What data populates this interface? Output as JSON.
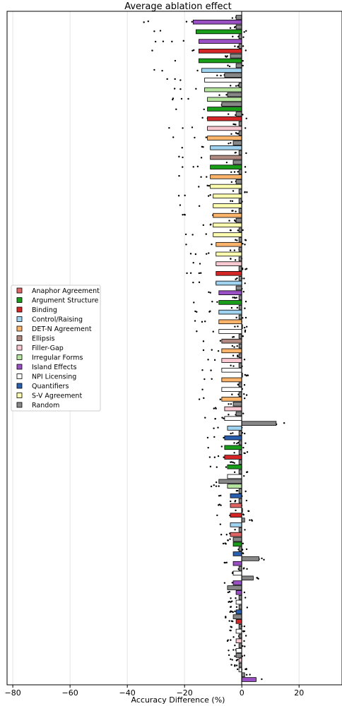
{
  "chart_data": {
    "type": "bar",
    "orientation": "horizontal",
    "title": "Average ablation effect",
    "xlabel": "Accuracy Difference (%)",
    "ylabel": "",
    "xlim": [
      -82,
      35
    ],
    "xticks": [
      -80,
      -60,
      -40,
      -20,
      0,
      20
    ],
    "grid": "vertical",
    "legend_position": "center-left",
    "legend": [
      {
        "name": "Anaphor Agreement",
        "color": "#e06666"
      },
      {
        "name": "Argument Structure",
        "color": "#1a9e1a"
      },
      {
        "name": "Binding",
        "color": "#d62728"
      },
      {
        "name": "Control/Raising",
        "color": "#9fd3f0"
      },
      {
        "name": "DET-N Agreement",
        "color": "#fdb46b"
      },
      {
        "name": "Ellipsis",
        "color": "#b08a80"
      },
      {
        "name": "Filler-Gap",
        "color": "#f9c8d0"
      },
      {
        "name": "Irregular Forms",
        "color": "#b6e5a0"
      },
      {
        "name": "Island Effects",
        "color": "#9b4fc4"
      },
      {
        "name": "NPI Licensing",
        "color": "#ffffff"
      },
      {
        "name": "Quantifiers",
        "color": "#2a5fb0"
      },
      {
        "name": "S-V Agreement",
        "color": "#ffffb0"
      },
      {
        "name": "Random",
        "color": "#888888"
      }
    ],
    "bars": [
      {
        "cat": "Island Effects",
        "value": -17,
        "random": -2
      },
      {
        "cat": "Argument Structure",
        "value": -16,
        "random": -2
      },
      {
        "cat": "Island Effects",
        "value": -15,
        "random": -1
      },
      {
        "cat": "Binding",
        "value": -15,
        "random": -1
      },
      {
        "cat": "Argument Structure",
        "value": -15,
        "random": -4
      },
      {
        "cat": "Control/Raising",
        "value": -14,
        "random": -2
      },
      {
        "cat": "NPI Licensing",
        "value": -13,
        "random": -6
      },
      {
        "cat": "Irregular Forms",
        "value": -13,
        "random": -1
      },
      {
        "cat": "Irregular Forms",
        "value": -12,
        "random": -5
      },
      {
        "cat": "Argument Structure",
        "value": -12,
        "random": -7
      },
      {
        "cat": "Binding",
        "value": -12,
        "random": -2
      },
      {
        "cat": "Filler-Gap",
        "value": -12,
        "random": -1
      },
      {
        "cat": "DET-N Agreement",
        "value": -12,
        "random": -1
      },
      {
        "cat": "Control/Raising",
        "value": -11,
        "random": -3
      },
      {
        "cat": "Ellipsis",
        "value": -11,
        "random": -1
      },
      {
        "cat": "Argument Structure",
        "value": -11,
        "random": -3
      },
      {
        "cat": "DET-N Agreement",
        "value": -11,
        "random": -1
      },
      {
        "cat": "S-V Agreement",
        "value": -11,
        "random": -2
      },
      {
        "cat": "S-V Agreement",
        "value": -10,
        "random": -1
      },
      {
        "cat": "S-V Agreement",
        "value": -10,
        "random": -1
      },
      {
        "cat": "DET-N Agreement",
        "value": -10,
        "random": -1
      },
      {
        "cat": "S-V Agreement",
        "value": -10,
        "random": -2
      },
      {
        "cat": "S-V Agreement",
        "value": -10,
        "random": -1
      },
      {
        "cat": "DET-N Agreement",
        "value": -9,
        "random": -1
      },
      {
        "cat": "S-V Agreement",
        "value": -9,
        "random": -1
      },
      {
        "cat": "Filler-Gap",
        "value": -9,
        "random": -1
      },
      {
        "cat": "Binding",
        "value": -9,
        "random": -1
      },
      {
        "cat": "Control/Raising",
        "value": -9,
        "random": -1
      },
      {
        "cat": "Island Effects",
        "value": -8,
        "random": -2
      },
      {
        "cat": "Argument Structure",
        "value": -8,
        "random": -1
      },
      {
        "cat": "Control/Raising",
        "value": -8,
        "random": -1
      },
      {
        "cat": "DET-N Agreement",
        "value": -8,
        "random": -1
      },
      {
        "cat": "NPI Licensing",
        "value": -8,
        "random": 0
      },
      {
        "cat": "Ellipsis",
        "value": -7,
        "random": -1
      },
      {
        "cat": "DET-N Agreement",
        "value": -7,
        "random": -1
      },
      {
        "cat": "Filler-Gap",
        "value": -7,
        "random": -1
      },
      {
        "cat": "NPI Licensing",
        "value": -7,
        "random": -1
      },
      {
        "cat": "DET-N Agreement",
        "value": -7,
        "random": 0
      },
      {
        "cat": "NPI Licensing",
        "value": -7,
        "random": -1
      },
      {
        "cat": "DET-N Agreement",
        "value": -7,
        "random": -1
      },
      {
        "cat": "Filler-Gap",
        "value": -6,
        "random": -3
      },
      {
        "cat": "NPI Licensing",
        "value": -6,
        "random": -2
      },
      {
        "cat": "Control/Raising",
        "value": -5,
        "random": 12
      },
      {
        "cat": "Quantifiers",
        "value": -6,
        "random": -1
      },
      {
        "cat": "Argument Structure",
        "value": -6,
        "random": -1
      },
      {
        "cat": "Binding",
        "value": -6,
        "random": -1
      },
      {
        "cat": "Argument Structure",
        "value": -5,
        "random": -1
      },
      {
        "cat": "NPI Licensing",
        "value": -5,
        "random": -1
      },
      {
        "cat": "Irregular Forms",
        "value": -5,
        "random": -8
      },
      {
        "cat": "Quantifiers",
        "value": -4,
        "random": -1
      },
      {
        "cat": "Anaphor Agreement",
        "value": -4,
        "random": -1
      },
      {
        "cat": "Binding",
        "value": -4,
        "random": 0
      },
      {
        "cat": "Control/Raising",
        "value": -4,
        "random": 1
      },
      {
        "cat": "Anaphor Agreement",
        "value": -4,
        "random": -1
      },
      {
        "cat": "Argument Structure",
        "value": -3,
        "random": -3
      },
      {
        "cat": "Quantifiers",
        "value": -3,
        "random": -1
      },
      {
        "cat": "Island Effects",
        "value": -3,
        "random": 6
      },
      {
        "cat": "NPI Licensing",
        "value": -3,
        "random": -1
      },
      {
        "cat": "Island Effects",
        "value": -3,
        "random": 4
      },
      {
        "cat": "Island Effects",
        "value": -2,
        "random": -5
      },
      {
        "cat": "NPI Licensing",
        "value": -2,
        "random": -1
      },
      {
        "cat": "Quantifiers",
        "value": -2,
        "random": -1
      },
      {
        "cat": "Binding",
        "value": -2,
        "random": -3
      },
      {
        "cat": "NPI Licensing",
        "value": -2,
        "random": -1
      },
      {
        "cat": "Filler-Gap",
        "value": -2,
        "random": -1
      },
      {
        "cat": "NPI Licensing",
        "value": -2,
        "random": -1
      },
      {
        "cat": "Filler-Gap",
        "value": -1,
        "random": -2
      },
      {
        "cat": "NPI Licensing",
        "value": -1,
        "random": -1
      },
      {
        "cat": "Island Effects",
        "value": 5,
        "random": 1
      }
    ]
  }
}
